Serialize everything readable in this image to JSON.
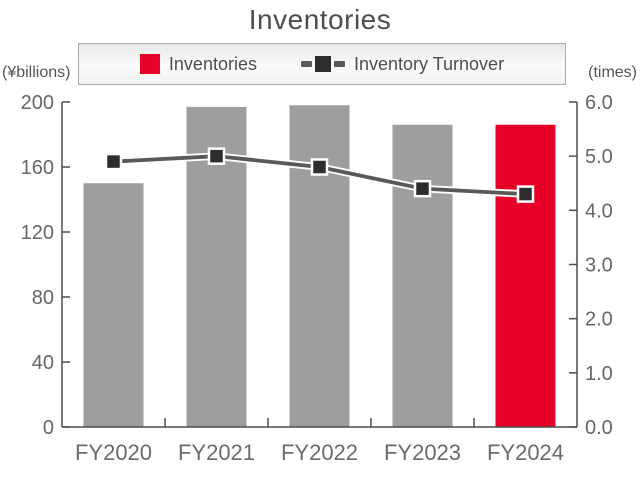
{
  "title": "Inventories",
  "left_axis_unit": "(¥billions)",
  "right_axis_unit": "(times)",
  "legend": {
    "items": [
      {
        "label": "Inventories",
        "type": "bar",
        "color": "#e60028"
      },
      {
        "label": "Inventory Turnover",
        "type": "line",
        "line_color": "#595959",
        "marker_color": "#2d2d2d"
      }
    ]
  },
  "chart_data": {
    "type": "bar",
    "subtype": "bar-and-line-combo",
    "title": "Inventories",
    "categories": [
      "FY2020",
      "FY2021",
      "FY2022",
      "FY2023",
      "FY2024"
    ],
    "series": [
      {
        "name": "Inventories",
        "type": "bar",
        "axis": "left",
        "values": [
          150,
          197,
          198,
          186,
          186
        ],
        "point_colors": [
          "#9e9e9e",
          "#9e9e9e",
          "#9e9e9e",
          "#9e9e9e",
          "#e60028"
        ]
      },
      {
        "name": "Inventory Turnover",
        "type": "line",
        "axis": "right",
        "values": [
          4.9,
          5.0,
          4.8,
          4.4,
          4.3
        ],
        "line_color": "#595959",
        "marker_color": "#2d2d2d"
      }
    ],
    "left_axis": {
      "label": "(¥billions)",
      "min": 0,
      "max": 200,
      "tick_labels": [
        "0",
        "40",
        "80",
        "120",
        "160",
        "200"
      ]
    },
    "right_axis": {
      "label": "(times)",
      "min": 0,
      "max": 6,
      "tick_labels": [
        "0.0",
        "1.0",
        "2.0",
        "3.0",
        "4.0",
        "5.0",
        "6.0"
      ]
    },
    "grid": false,
    "legend_position": "top",
    "style": {
      "bar_color": "#9e9e9e",
      "highlight_bar_color": "#e60028",
      "line_color": "#595959",
      "marker_color": "#2d2d2d",
      "axis_color": "#4d4d4d",
      "tick_label_color": "#666666",
      "category_label_color": "#6b6b6b"
    }
  }
}
